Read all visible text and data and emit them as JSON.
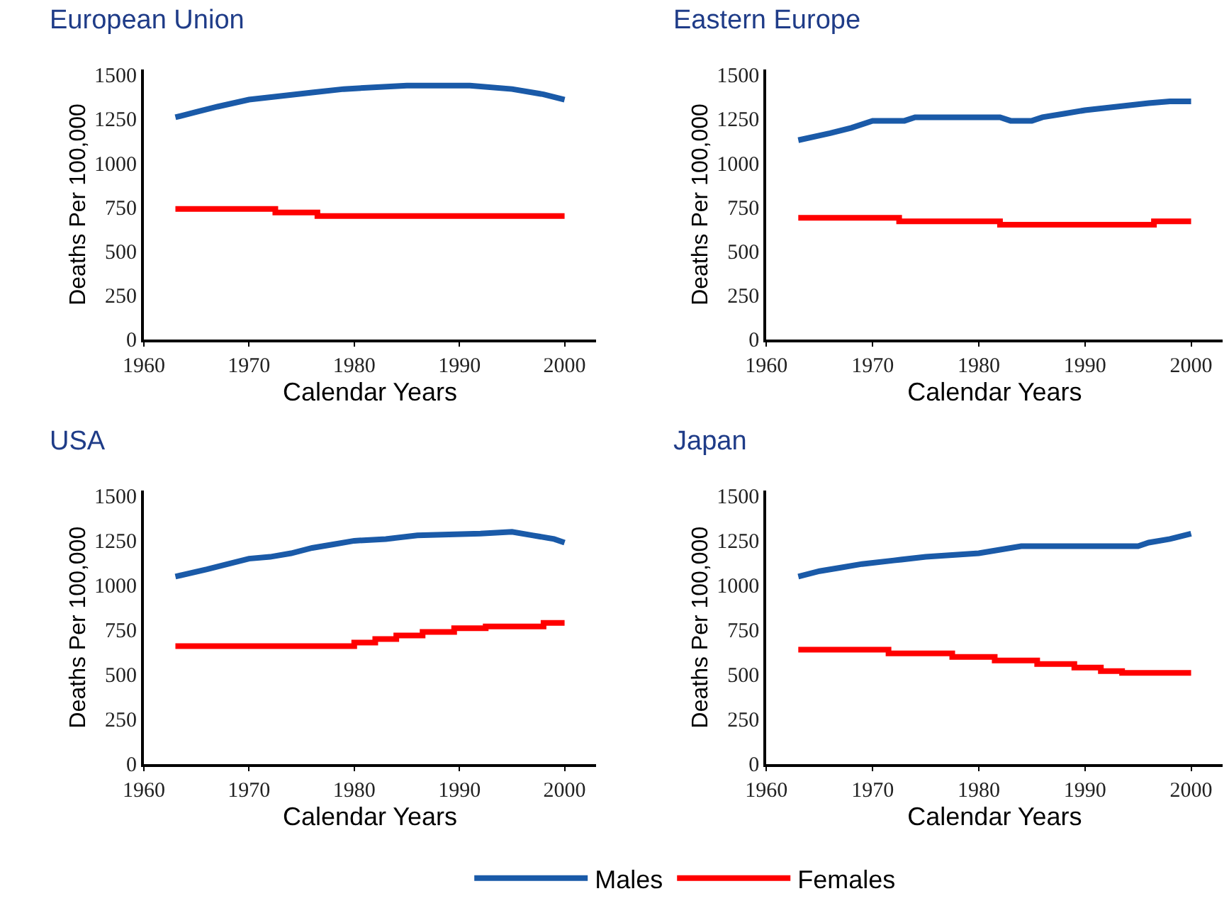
{
  "chart_data": [
    {
      "type": "line",
      "title": "European Union",
      "xlabel": "Calendar Years",
      "ylabel": "Deaths Per 100,000",
      "xlim": [
        1960,
        2003
      ],
      "xticks": [
        1960,
        1970,
        1980,
        1990,
        2000
      ],
      "ylim": [
        0,
        1530
      ],
      "yticks": [
        0,
        250,
        500,
        750,
        1000,
        1250,
        1500
      ],
      "grid": false,
      "legend": "bottom",
      "marker": "none",
      "series": [
        {
          "name": "Males",
          "color": "#1a5aa8",
          "x": [
            1963,
            1965,
            1967,
            1970,
            1973,
            1976,
            1979,
            1985,
            1991,
            1995,
            1998,
            2000
          ],
          "values": [
            1260,
            1290,
            1320,
            1360,
            1380,
            1400,
            1420,
            1440,
            1440,
            1420,
            1390,
            1360
          ]
        },
        {
          "name": "Females",
          "type": "step",
          "color": "#ff0000",
          "x": [
            1963,
            1972.5,
            1976.5,
            2000
          ],
          "values": [
            740,
            720,
            700,
            700
          ]
        }
      ]
    },
    {
      "type": "line",
      "title": "Eastern Europe",
      "xlabel": "Calendar Years",
      "ylabel": "Deaths Per 100,000",
      "xlim": [
        1960,
        2003
      ],
      "xticks": [
        1960,
        1970,
        1980,
        1990,
        2000
      ],
      "ylim": [
        0,
        1530
      ],
      "yticks": [
        0,
        250,
        500,
        750,
        1000,
        1250,
        1500
      ],
      "grid": false,
      "legend": "bottom",
      "marker": "none",
      "series": [
        {
          "name": "Males",
          "color": "#1a5aa8",
          "x": [
            1963,
            1966,
            1968,
            1970,
            1973,
            1974,
            1982,
            1983,
            1985,
            1986,
            1988,
            1990,
            1993,
            1996,
            1998,
            2000
          ],
          "values": [
            1130,
            1170,
            1200,
            1240,
            1240,
            1260,
            1260,
            1240,
            1240,
            1260,
            1280,
            1300,
            1320,
            1340,
            1350,
            1350
          ]
        },
        {
          "name": "Females",
          "type": "step",
          "color": "#ff0000",
          "x": [
            1963,
            1972.5,
            1982,
            1996.5,
            2000
          ],
          "values": [
            690,
            670,
            650,
            670,
            670
          ]
        }
      ]
    },
    {
      "type": "line",
      "title": "USA",
      "xlabel": "Calendar Years",
      "ylabel": "Deaths Per 100,000",
      "xlim": [
        1960,
        2003
      ],
      "xticks": [
        1960,
        1970,
        1980,
        1990,
        2000
      ],
      "ylim": [
        0,
        1530
      ],
      "yticks": [
        0,
        250,
        500,
        750,
        1000,
        1250,
        1500
      ],
      "grid": false,
      "legend": "bottom",
      "marker": "none",
      "series": [
        {
          "name": "Males",
          "color": "#1a5aa8",
          "x": [
            1963,
            1966,
            1968,
            1970,
            1972,
            1974,
            1976,
            1978,
            1980,
            1983,
            1986,
            1992,
            1995,
            1997,
            1999,
            2000
          ],
          "values": [
            1050,
            1090,
            1120,
            1150,
            1160,
            1180,
            1210,
            1230,
            1250,
            1260,
            1280,
            1290,
            1300,
            1280,
            1260,
            1240
          ]
        },
        {
          "name": "Females",
          "type": "step",
          "color": "#ff0000",
          "x": [
            1963,
            1980,
            1982,
            1984,
            1986.5,
            1989.5,
            1992.5,
            1998,
            2000
          ],
          "values": [
            660,
            680,
            700,
            720,
            740,
            760,
            770,
            790,
            790
          ]
        }
      ]
    },
    {
      "type": "line",
      "title": "Japan",
      "xlabel": "Calendar Years",
      "ylabel": "Deaths Per 100,000",
      "xlim": [
        1960,
        2003
      ],
      "xticks": [
        1960,
        1970,
        1980,
        1990,
        2000
      ],
      "ylim": [
        0,
        1530
      ],
      "yticks": [
        0,
        250,
        500,
        750,
        1000,
        1250,
        1500
      ],
      "grid": false,
      "legend": "bottom",
      "marker": "none",
      "series": [
        {
          "name": "Males",
          "color": "#1a5aa8",
          "x": [
            1963,
            1965,
            1967,
            1969,
            1972,
            1975,
            1980,
            1982,
            1984,
            1995,
            1996,
            1998,
            2000
          ],
          "values": [
            1050,
            1080,
            1100,
            1120,
            1140,
            1160,
            1180,
            1200,
            1220,
            1220,
            1240,
            1260,
            1290
          ]
        },
        {
          "name": "Females",
          "type": "step",
          "color": "#ff0000",
          "x": [
            1963,
            1971.5,
            1977.5,
            1981.5,
            1985.5,
            1989,
            1991.5,
            1993.5,
            2000
          ],
          "values": [
            640,
            620,
            600,
            580,
            560,
            540,
            520,
            510,
            510
          ]
        }
      ]
    }
  ]
}
